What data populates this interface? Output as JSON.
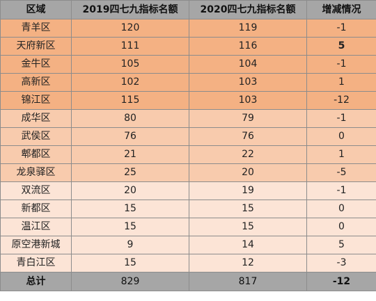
{
  "table": {
    "headers": [
      "区域",
      "2019四七九指标名额",
      "2020四七九指标名额",
      "增减情况"
    ],
    "rows": [
      {
        "region": "青羊区",
        "y2019": "120",
        "y2020": "119",
        "change": "-1",
        "bold_change": false,
        "bg": "#f4b183"
      },
      {
        "region": "天府新区",
        "y2019": "111",
        "y2020": "116",
        "change": "5",
        "bold_change": true,
        "bg": "#f4b183"
      },
      {
        "region": "金牛区",
        "y2019": "105",
        "y2020": "104",
        "change": "-1",
        "bold_change": false,
        "bg": "#f4b183"
      },
      {
        "region": "高新区",
        "y2019": "102",
        "y2020": "103",
        "change": "1",
        "bold_change": false,
        "bg": "#f4b183"
      },
      {
        "region": "锦江区",
        "y2019": "115",
        "y2020": "103",
        "change": "-12",
        "bold_change": false,
        "bg": "#f4b183"
      },
      {
        "region": "成华区",
        "y2019": "80",
        "y2020": "79",
        "change": "-1",
        "bold_change": false,
        "bg": "#f8cbad"
      },
      {
        "region": "武侯区",
        "y2019": "76",
        "y2020": "76",
        "change": "0",
        "bold_change": false,
        "bg": "#f8cbad"
      },
      {
        "region": "郫都区",
        "y2019": "21",
        "y2020": "22",
        "change": "1",
        "bold_change": false,
        "bg": "#f8cbad"
      },
      {
        "region": "龙泉驿区",
        "y2019": "25",
        "y2020": "20",
        "change": "-5",
        "bold_change": false,
        "bg": "#f8cbad"
      },
      {
        "region": "双流区",
        "y2019": "20",
        "y2020": "19",
        "change": "-1",
        "bold_change": false,
        "bg": "#fce4d6"
      },
      {
        "region": "新都区",
        "y2019": "15",
        "y2020": "15",
        "change": "0",
        "bold_change": false,
        "bg": "#fce4d6"
      },
      {
        "region": "温江区",
        "y2019": "15",
        "y2020": "15",
        "change": "0",
        "bold_change": false,
        "bg": "#fce4d6"
      },
      {
        "region": "原空港新城",
        "y2019": "9",
        "y2020": "14",
        "change": "5",
        "bold_change": false,
        "bg": "#fce4d6"
      },
      {
        "region": "青白江区",
        "y2019": "15",
        "y2020": "12",
        "change": "-3",
        "bold_change": false,
        "bg": "#fce4d6"
      }
    ],
    "total": {
      "label": "总计",
      "y2019": "829",
      "y2020": "817",
      "change": "-12"
    },
    "colors": {
      "header_bg": "#a6a6a6",
      "tier1_bg": "#f4b183",
      "tier2_bg": "#f8cbad",
      "tier3_bg": "#fce4d6",
      "border": "#8c8c8c"
    }
  }
}
